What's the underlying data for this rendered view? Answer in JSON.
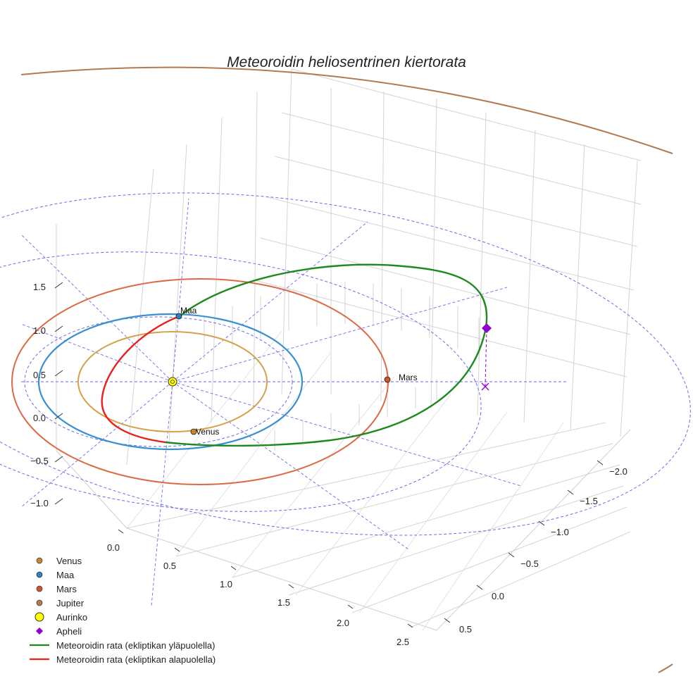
{
  "chart_data": {
    "type": "line",
    "title": "Meteoroidin heliosentrinen kiertorata",
    "axes": {
      "x_ticks": [
        "0.0",
        "0.5",
        "1.0",
        "1.5",
        "2.0",
        "2.5"
      ],
      "y_ticks": [
        "−2.0",
        "−1.5",
        "−1.0",
        "−0.5",
        "0.0",
        "0.5"
      ],
      "z_ticks": [
        "1.5",
        "1.0",
        "0.5",
        "0.0",
        "−0.5",
        "−1.0"
      ]
    },
    "planet_labels": {
      "venus": "Venus",
      "maa": "Maa",
      "mars": "Mars"
    },
    "legend": [
      {
        "key": "venus",
        "label": "Venus",
        "marker": "circle",
        "color": "#c9862e"
      },
      {
        "key": "maa",
        "label": "Maa",
        "marker": "circle",
        "color": "#2f7fc1"
      },
      {
        "key": "mars",
        "label": "Mars",
        "marker": "circle",
        "color": "#d0552a"
      },
      {
        "key": "jupiter",
        "label": "Jupiter",
        "marker": "circle",
        "color": "#b07a52"
      },
      {
        "key": "aurinko",
        "label": "Aurinko",
        "marker": "circle-large",
        "color": "#ffff00"
      },
      {
        "key": "apheli",
        "label": "Apheli",
        "marker": "diamond",
        "color": "#9400d3"
      },
      {
        "key": "above",
        "label": "Meteoroidin rata (ekliptikan yläpuolella)",
        "marker": "line",
        "color": "#1e8a1e"
      },
      {
        "key": "below",
        "label": "Meteoroidin rata (ekliptikan alapuolella)",
        "marker": "line",
        "color": "#e8211f"
      }
    ],
    "orbits": {
      "venus_color": "#d4a24c",
      "maa_color": "#3a8fd0",
      "mars_color": "#dc6a45",
      "jupiter_color": "#b07a52",
      "meteoroid_above_color": "#1e8a1e",
      "meteoroid_below_color": "#e8211f",
      "grid_guides_color": "#6a6ae8"
    }
  }
}
